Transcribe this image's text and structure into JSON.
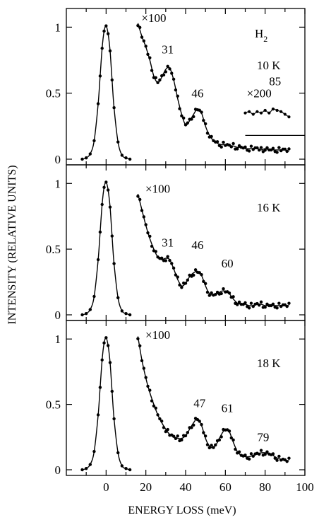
{
  "figure": {
    "ylabel": "INTENSITY (RELATIVE UNITS)",
    "xlabel": "ENERGY LOSS (meV)",
    "xlim": [
      -20,
      100
    ],
    "x_ticks": [
      "0",
      "20",
      "40",
      "60",
      "80",
      "100"
    ],
    "colors": {
      "ink": "#000000",
      "background": "#ffffff"
    }
  },
  "chart_data": [
    {
      "type": "scatter",
      "panel_label": "10 K",
      "species_label": "H",
      "species_subscript": "2",
      "ylim": [
        0,
        1.12
      ],
      "y_ticks": [
        {
          "value": 0,
          "label": "0"
        },
        {
          "value": 0.5,
          "label": "0.5"
        },
        {
          "value": 1,
          "label": "1"
        }
      ],
      "annotations": [
        {
          "text": "×100",
          "x": 24,
          "y": 1.04
        },
        {
          "text": "31",
          "x": 31,
          "y": 0.8
        },
        {
          "text": "46",
          "x": 46,
          "y": 0.47
        },
        {
          "text": "×200",
          "x": 77,
          "y": 0.47
        },
        {
          "text": "85",
          "x": 85,
          "y": 0.56
        }
      ],
      "baseline_segment": {
        "x": [
          70,
          100
        ],
        "y": 0.18
      },
      "series": [
        {
          "elastic_peak": {
            "x": [
              -12,
              -10,
              -8,
              -6,
              -4,
              -3,
              -2,
              -1,
              0,
              1,
              2,
              3,
              4,
              6,
              8,
              10,
              12
            ],
            "y": [
              0.0,
              0.01,
              0.04,
              0.14,
              0.42,
              0.63,
              0.84,
              0.97,
              1.01,
              0.95,
              0.82,
              0.6,
              0.39,
              0.13,
              0.03,
              0.01,
              0.0
            ]
          },
          "loss_x100": {
            "x": [
              16,
              18,
              20,
              22,
              24,
              26,
              28,
              30,
              32,
              34,
              36,
              38,
              40,
              42,
              44,
              46,
              48,
              50,
              52,
              54,
              56,
              58,
              60,
              62,
              64,
              66,
              68,
              70,
              72,
              74,
              76,
              78,
              80,
              82,
              84,
              86,
              88,
              90,
              92
            ],
            "y": [
              1.03,
              0.93,
              0.85,
              0.75,
              0.63,
              0.58,
              0.62,
              0.68,
              0.69,
              0.6,
              0.46,
              0.34,
              0.26,
              0.29,
              0.34,
              0.38,
              0.35,
              0.25,
              0.18,
              0.14,
              0.12,
              0.11,
              0.11,
              0.1,
              0.1,
              0.09,
              0.09,
              0.08,
              0.08,
              0.08,
              0.08,
              0.07,
              0.08,
              0.07,
              0.07,
              0.07,
              0.07,
              0.07,
              0.06
            ]
          },
          "loss_x200": {
            "x": [
              70,
              72,
              74,
              76,
              78,
              80,
              82,
              84,
              86,
              88,
              90,
              92
            ],
            "y": [
              0.35,
              0.36,
              0.34,
              0.36,
              0.35,
              0.37,
              0.35,
              0.38,
              0.37,
              0.36,
              0.34,
              0.32
            ]
          }
        }
      ]
    },
    {
      "type": "scatter",
      "panel_label": "16 K",
      "ylim": [
        0,
        1.12
      ],
      "y_ticks": [
        {
          "value": 0,
          "label": "0"
        },
        {
          "value": 0.5,
          "label": "0.5"
        },
        {
          "value": 1,
          "label": "1"
        }
      ],
      "annotations": [
        {
          "text": "×100",
          "x": 26,
          "y": 0.93
        },
        {
          "text": "31",
          "x": 31,
          "y": 0.52
        },
        {
          "text": "46",
          "x": 46,
          "y": 0.5
        },
        {
          "text": "60",
          "x": 61,
          "y": 0.36
        }
      ],
      "series": [
        {
          "elastic_peak": {
            "x": [
              -12,
              -10,
              -8,
              -6,
              -4,
              -3,
              -2,
              -1,
              0,
              1,
              2,
              3,
              4,
              6,
              8,
              10,
              12
            ],
            "y": [
              0.0,
              0.01,
              0.04,
              0.14,
              0.42,
              0.63,
              0.84,
              0.97,
              1.01,
              0.95,
              0.82,
              0.6,
              0.39,
              0.13,
              0.03,
              0.01,
              0.0
            ]
          },
          "loss_x100": {
            "x": [
              16,
              18,
              20,
              22,
              24,
              26,
              28,
              30,
              32,
              34,
              36,
              38,
              40,
              42,
              44,
              46,
              48,
              50,
              52,
              54,
              56,
              58,
              60,
              62,
              64,
              66,
              68,
              70,
              72,
              74,
              76,
              78,
              80,
              82,
              84,
              86,
              88,
              90,
              92
            ],
            "y": [
              0.92,
              0.8,
              0.68,
              0.58,
              0.5,
              0.44,
              0.42,
              0.43,
              0.42,
              0.35,
              0.27,
              0.22,
              0.24,
              0.29,
              0.32,
              0.33,
              0.3,
              0.22,
              0.16,
              0.15,
              0.16,
              0.18,
              0.18,
              0.16,
              0.12,
              0.09,
              0.08,
              0.08,
              0.07,
              0.07,
              0.08,
              0.08,
              0.07,
              0.07,
              0.07,
              0.07,
              0.07,
              0.07,
              0.07
            ]
          }
        }
      ]
    },
    {
      "type": "scatter",
      "panel_label": "18 K",
      "ylim": [
        0,
        1.12
      ],
      "y_ticks": [
        {
          "value": 0,
          "label": "0"
        },
        {
          "value": 0.5,
          "label": "0.5"
        },
        {
          "value": 1,
          "label": "1"
        }
      ],
      "annotations": [
        {
          "text": "×100",
          "x": 26,
          "y": 1.0
        },
        {
          "text": "47",
          "x": 47,
          "y": 0.48
        },
        {
          "text": "61",
          "x": 61,
          "y": 0.44
        },
        {
          "text": "79",
          "x": 79,
          "y": 0.22
        }
      ],
      "series": [
        {
          "elastic_peak": {
            "x": [
              -12,
              -10,
              -8,
              -6,
              -4,
              -3,
              -2,
              -1,
              0,
              1,
              2,
              3,
              4,
              6,
              8,
              10,
              12
            ],
            "y": [
              0.0,
              0.01,
              0.04,
              0.14,
              0.42,
              0.63,
              0.84,
              0.97,
              1.01,
              0.95,
              0.82,
              0.6,
              0.39,
              0.13,
              0.03,
              0.01,
              0.0
            ]
          },
          "loss_x100": {
            "x": [
              16,
              18,
              20,
              22,
              24,
              26,
              28,
              30,
              32,
              34,
              36,
              38,
              40,
              42,
              44,
              46,
              48,
              50,
              52,
              54,
              56,
              58,
              60,
              62,
              64,
              66,
              68,
              70,
              72,
              74,
              76,
              78,
              80,
              82,
              84,
              86,
              88,
              90,
              92
            ],
            "y": [
              1.02,
              0.84,
              0.7,
              0.59,
              0.5,
              0.42,
              0.36,
              0.31,
              0.27,
              0.25,
              0.24,
              0.24,
              0.26,
              0.31,
              0.36,
              0.39,
              0.34,
              0.24,
              0.18,
              0.17,
              0.21,
              0.27,
              0.31,
              0.29,
              0.21,
              0.14,
              0.11,
              0.1,
              0.1,
              0.11,
              0.12,
              0.13,
              0.13,
              0.12,
              0.11,
              0.09,
              0.08,
              0.07,
              0.07
            ]
          }
        }
      ]
    }
  ]
}
